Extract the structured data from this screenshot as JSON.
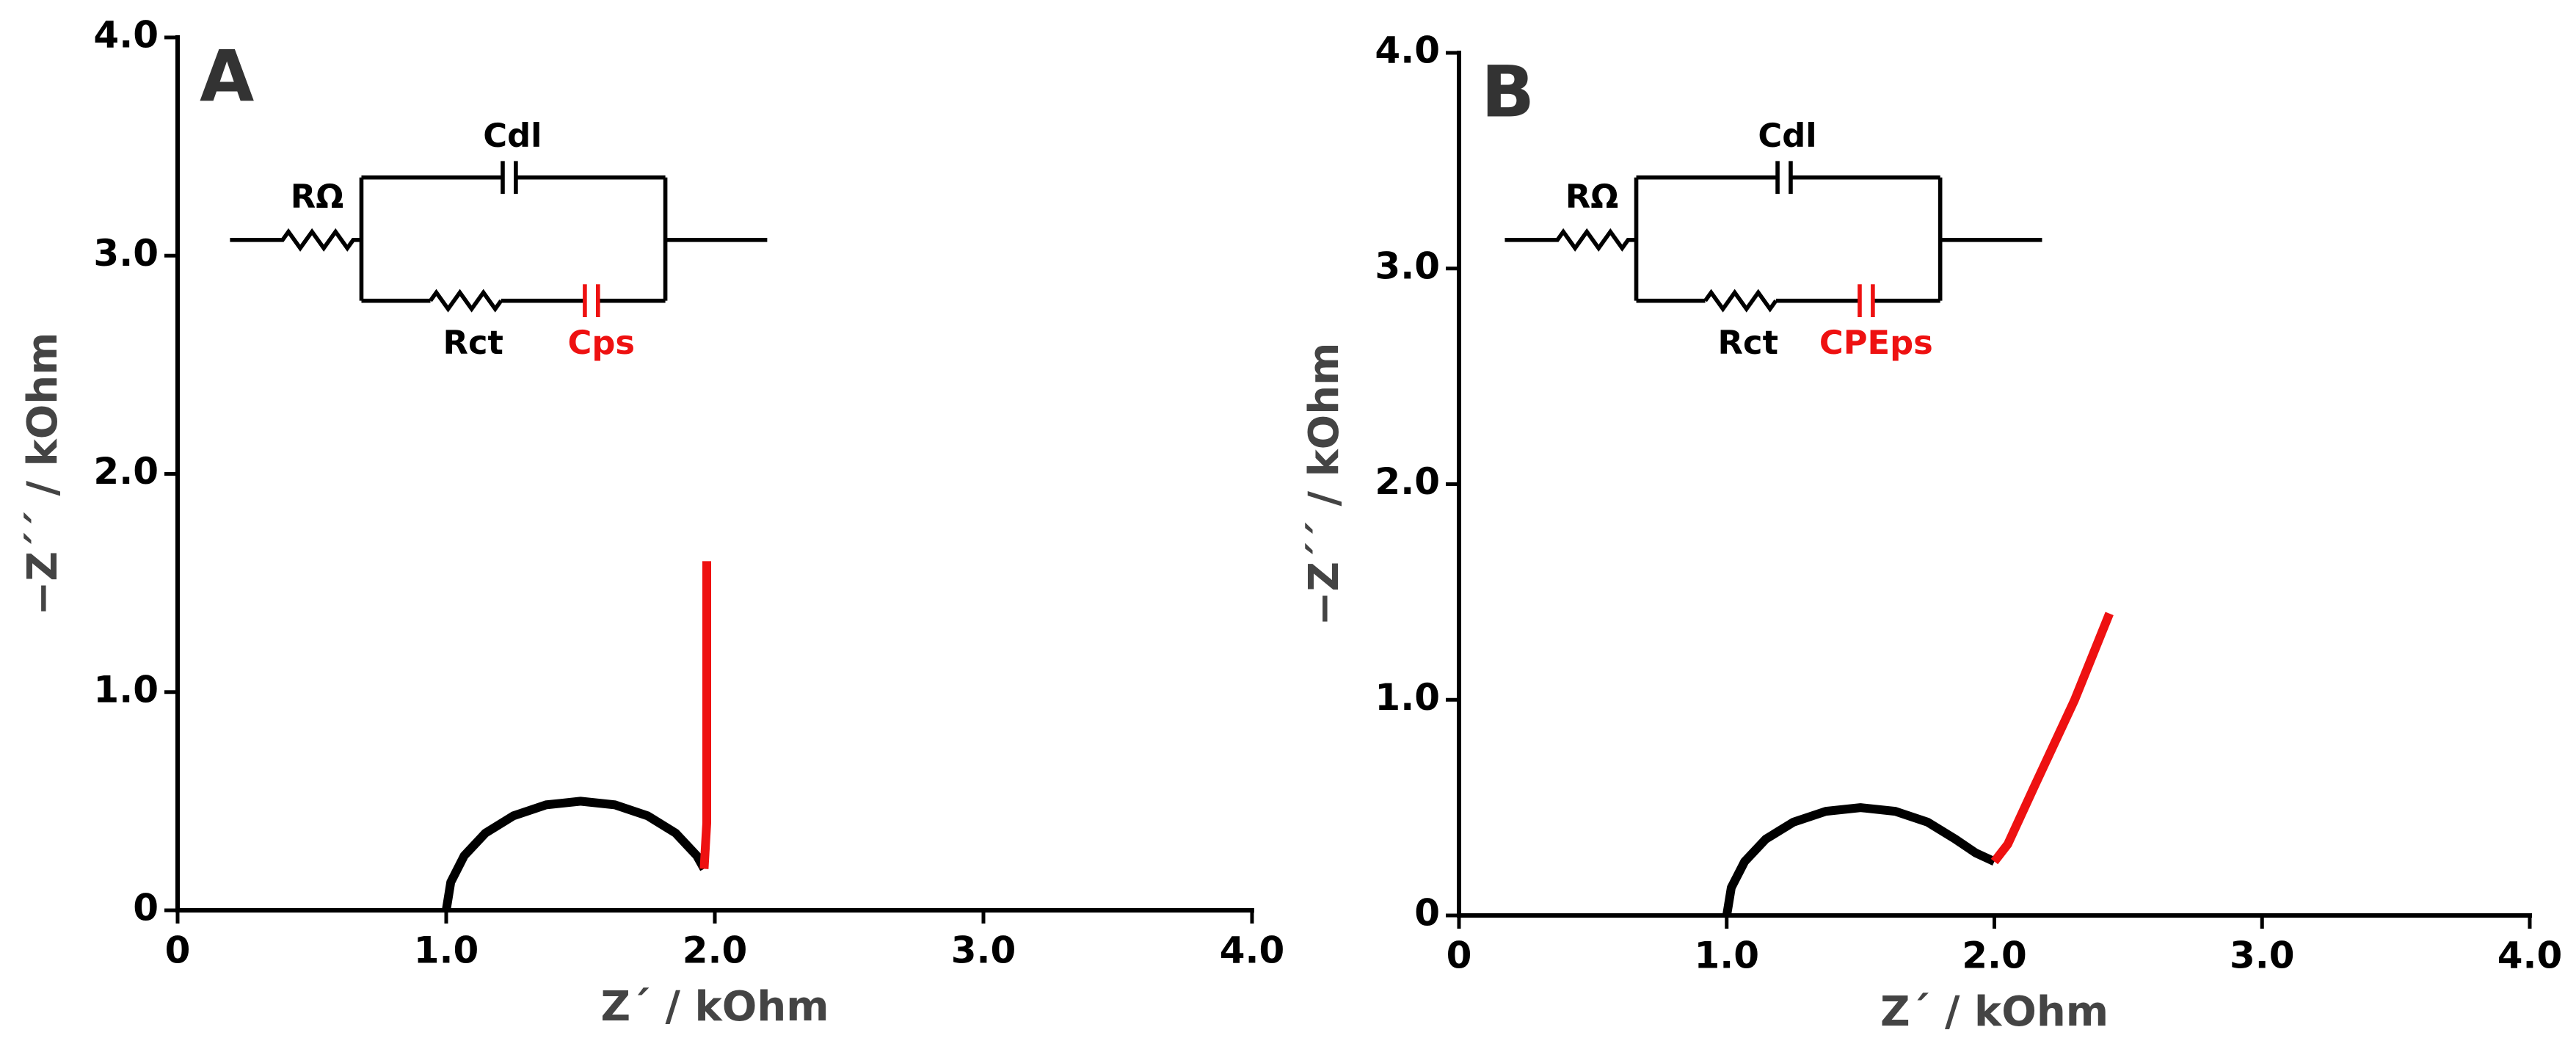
{
  "chart_data": [
    {
      "type": "line",
      "panel_label": "A",
      "xlabel": "Z´ / kOhm",
      "ylabel": "−Z´´ / kOhm",
      "xlim": [
        0,
        4
      ],
      "ylim": [
        0,
        4
      ],
      "xticks": [
        0,
        {
          "value": 1,
          "label": "1.0"
        },
        {
          "value": 2,
          "label": "2.0"
        },
        {
          "value": 3,
          "label": "3.0"
        },
        {
          "value": 4,
          "label": "4.0"
        }
      ],
      "yticks": [
        0,
        {
          "value": 1,
          "label": "1.0"
        },
        {
          "value": 2,
          "label": "2.0"
        },
        {
          "value": 3,
          "label": "3.0"
        },
        {
          "value": 4,
          "label": "4.0"
        }
      ],
      "circuit_labels": [
        "RΩ",
        "Cdl",
        "Rct",
        "Cps"
      ],
      "series": [
        {
          "color": "#000000",
          "x": [
            1,
            1.017,
            1.067,
            1.146,
            1.25,
            1.371,
            1.5,
            1.629,
            1.75,
            1.854,
            1.933,
            1.96
          ],
          "values": [
            0,
            0.129,
            0.25,
            0.354,
            0.433,
            0.483,
            0.5,
            0.483,
            0.433,
            0.354,
            0.25,
            0.19
          ]
        },
        {
          "color": "#ee1111",
          "x": [
            1.96,
            1.97,
            1.97
          ],
          "values": [
            0.19,
            0.4,
            1.6
          ]
        }
      ]
    },
    {
      "type": "line",
      "panel_label": "B",
      "xlabel": "Z´ / kOhm",
      "ylabel": "−Z´´ / kOhm",
      "xlim": [
        0,
        4
      ],
      "ylim": [
        0,
        4
      ],
      "xticks": [
        0,
        {
          "value": 1,
          "label": "1.0"
        },
        {
          "value": 2,
          "label": "2.0"
        },
        {
          "value": 3,
          "label": "3.0"
        },
        {
          "value": 4,
          "label": "4.0"
        }
      ],
      "yticks": [
        0,
        {
          "value": 1,
          "label": "1.0"
        },
        {
          "value": 2,
          "label": "2.0"
        },
        {
          "value": 3,
          "label": "3.0"
        },
        {
          "value": 4,
          "label": "4.0"
        }
      ],
      "circuit_labels": [
        "RΩ",
        "Cdl",
        "Rct",
        "CPEps"
      ],
      "series": [
        {
          "color": "#000000",
          "x": [
            1,
            1.017,
            1.067,
            1.146,
            1.25,
            1.371,
            1.5,
            1.629,
            1.75,
            1.854,
            1.93,
            2.0
          ],
          "values": [
            0,
            0.129,
            0.25,
            0.354,
            0.433,
            0.483,
            0.5,
            0.483,
            0.433,
            0.354,
            0.29,
            0.25
          ]
        },
        {
          "color": "#ee1111",
          "x": [
            2.0,
            2.05,
            2.15,
            2.3,
            2.43
          ],
          "values": [
            0.25,
            0.33,
            0.6,
            1.0,
            1.4
          ]
        }
      ]
    }
  ]
}
